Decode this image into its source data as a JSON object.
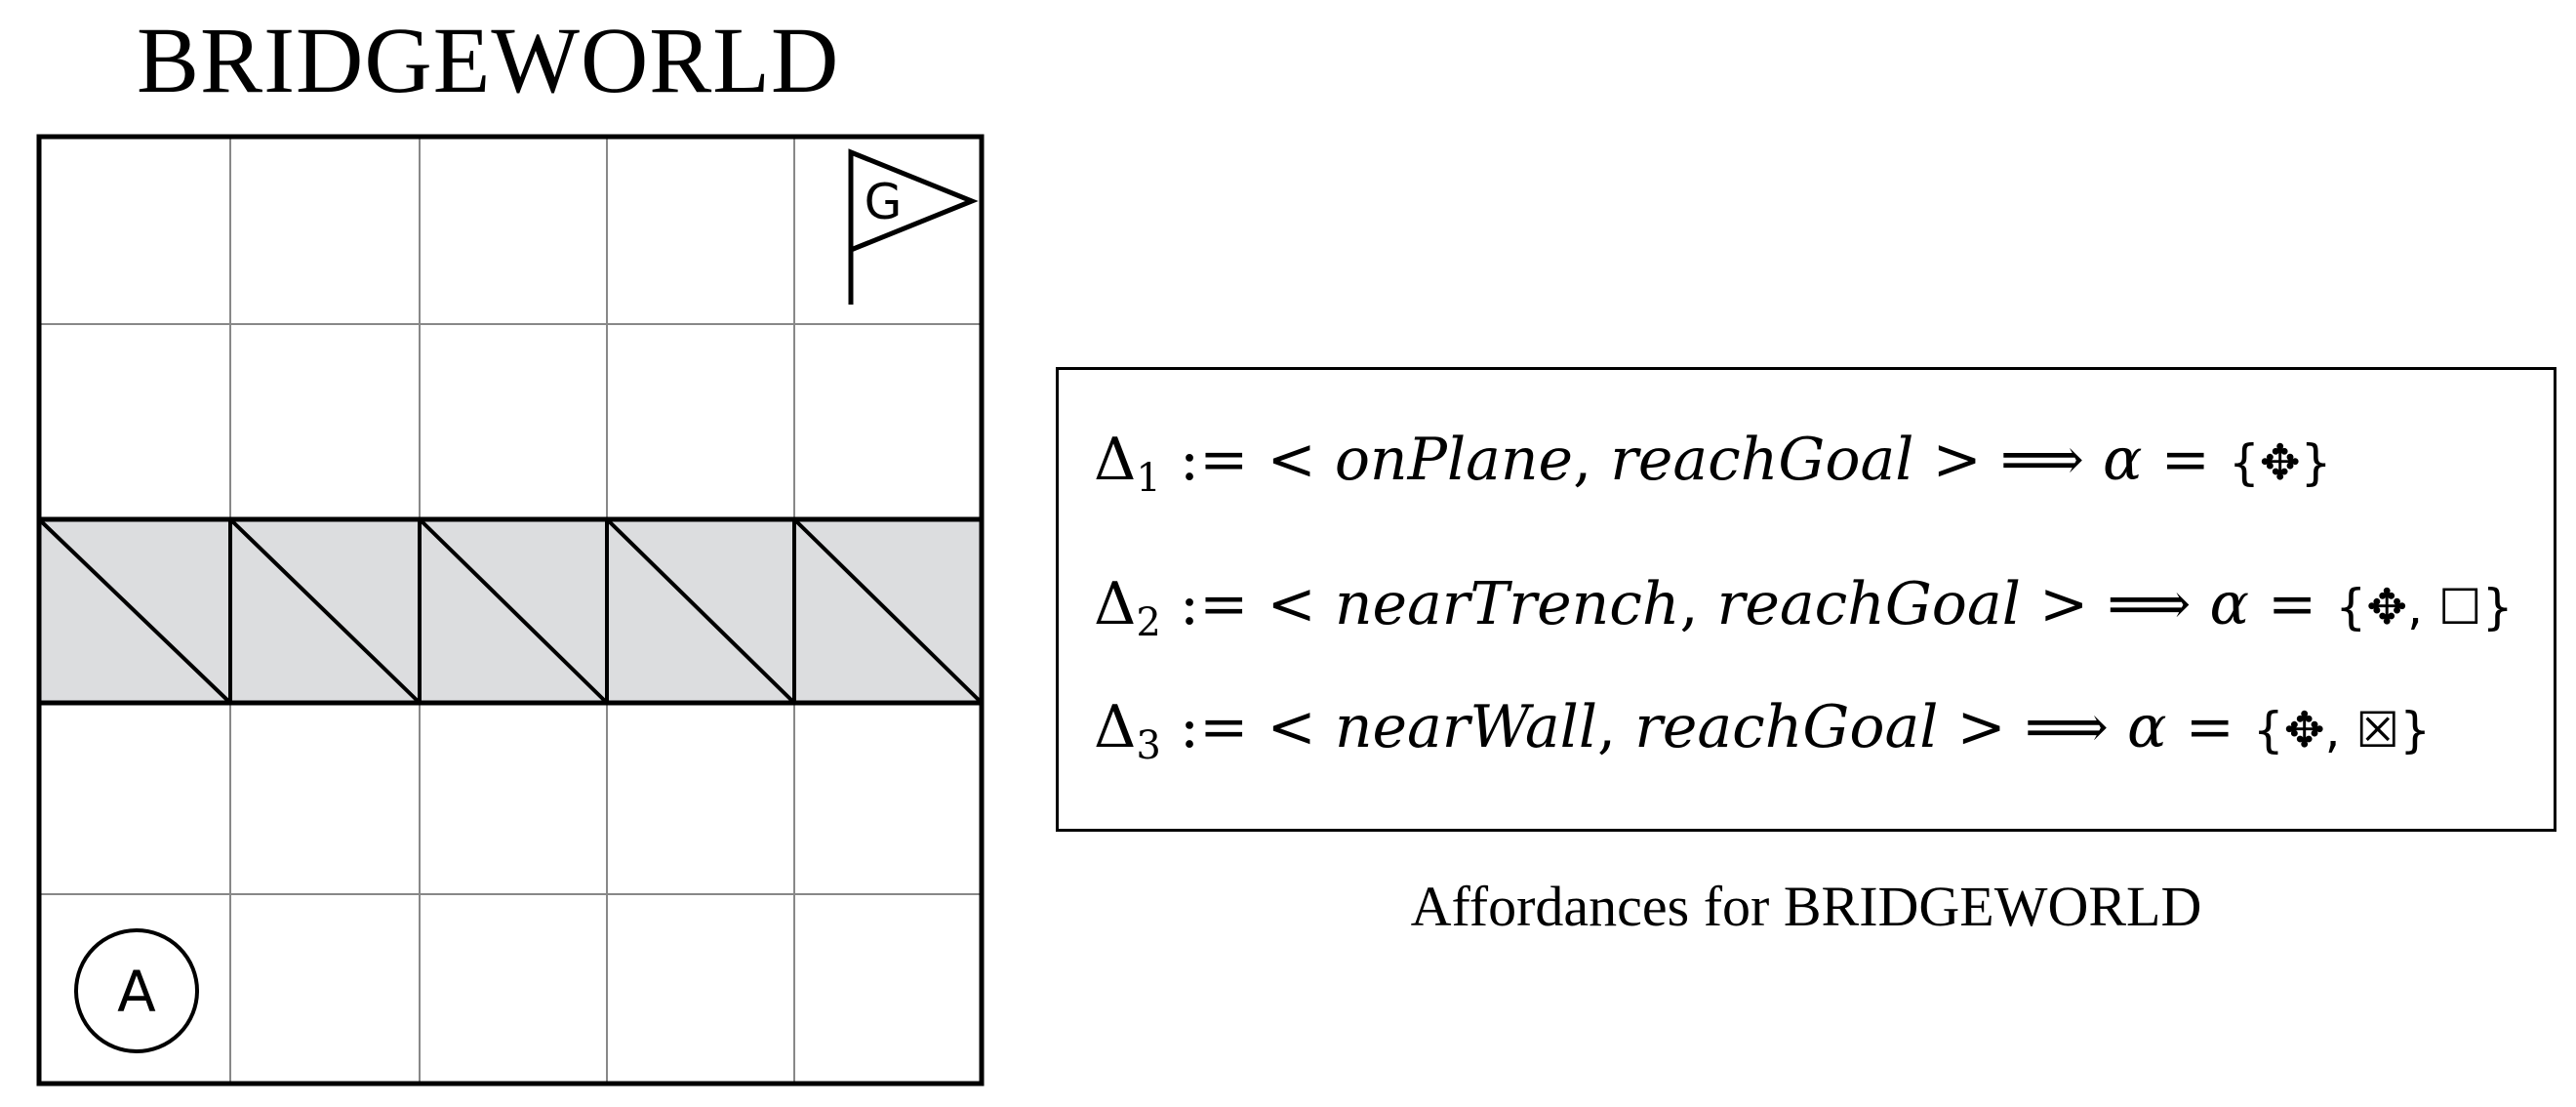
{
  "title": "BRIDGEWORLD",
  "grid": {
    "rows": 5,
    "cols": 5,
    "bridge_row": 2,
    "fill_color": "#dcdddf",
    "goal_label": "G",
    "agent_label": "A",
    "goal_icon": "flag-icon",
    "agent_icon": "circle-icon"
  },
  "rules": [
    {
      "delta": "Δ",
      "index": "1",
      "assign": ":=",
      "lt": "<",
      "state": "onPlane",
      "comma": ",",
      "goal": "reachGoal",
      "gt": ">",
      "implies": "⟹",
      "alpha": "α",
      "eq": "=",
      "actions": "{✥}"
    },
    {
      "delta": "Δ",
      "index": "2",
      "assign": ":=",
      "lt": "<",
      "state": "nearTrench",
      "comma": ",",
      "goal": "reachGoal",
      "gt": ">",
      "implies": "⟹",
      "alpha": "α",
      "eq": "=",
      "actions": "{✥, ☐}"
    },
    {
      "delta": "Δ",
      "index": "3",
      "assign": ":=",
      "lt": "<",
      "state": "nearWall",
      "comma": ",",
      "goal": "reachGoal",
      "gt": ">",
      "implies": "⟹",
      "alpha": "α",
      "eq": "=",
      "actions": "{✥, ☒}"
    }
  ],
  "caption": "Affordances for BRIDGEWORLD"
}
